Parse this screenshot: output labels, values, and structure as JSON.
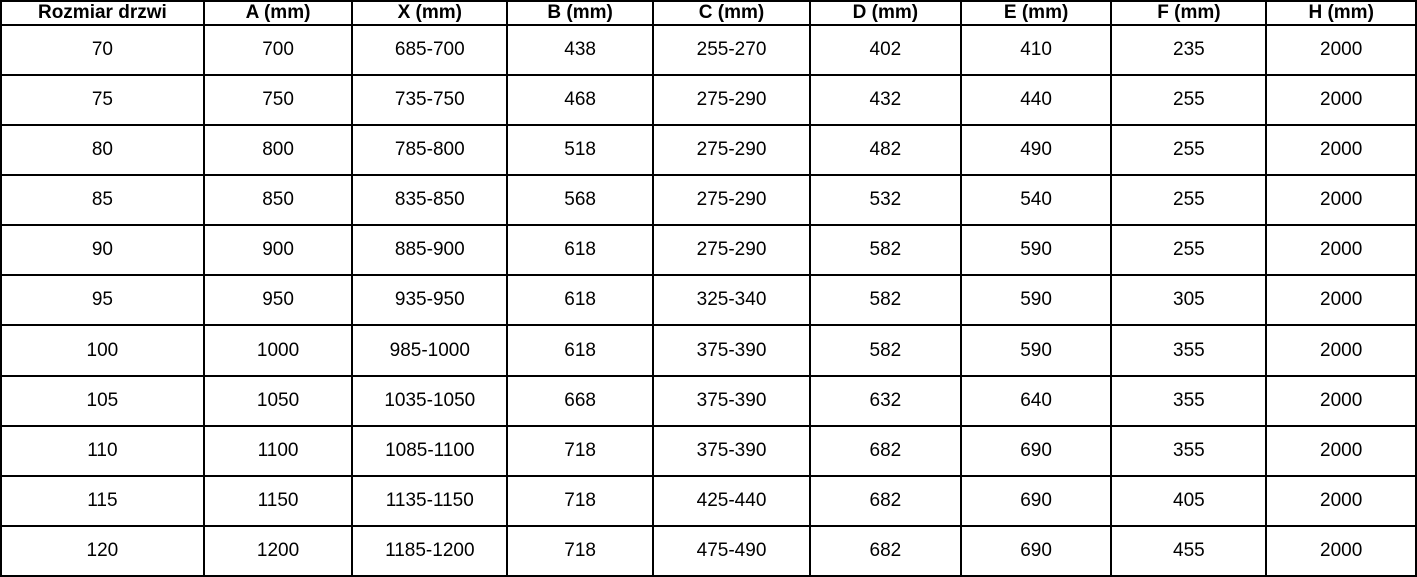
{
  "colors": {
    "border": "#000000",
    "text": "#000000",
    "background": "#ffffff"
  },
  "table": {
    "headers": [
      "Rozmiar drzwi",
      "A (mm)",
      "X (mm)",
      "B (mm)",
      "C (mm)",
      "D (mm)",
      "E (mm)",
      "F (mm)",
      "H (mm)"
    ],
    "rows": [
      [
        "70",
        "700",
        "685-700",
        "438",
        "255-270",
        "402",
        "410",
        "235",
        "2000"
      ],
      [
        "75",
        "750",
        "735-750",
        "468",
        "275-290",
        "432",
        "440",
        "255",
        "2000"
      ],
      [
        "80",
        "800",
        "785-800",
        "518",
        "275-290",
        "482",
        "490",
        "255",
        "2000"
      ],
      [
        "85",
        "850",
        "835-850",
        "568",
        "275-290",
        "532",
        "540",
        "255",
        "2000"
      ],
      [
        "90",
        "900",
        "885-900",
        "618",
        "275-290",
        "582",
        "590",
        "255",
        "2000"
      ],
      [
        "95",
        "950",
        "935-950",
        "618",
        "325-340",
        "582",
        "590",
        "305",
        "2000"
      ],
      [
        "100",
        "1000",
        "985-1000",
        "618",
        "375-390",
        "582",
        "590",
        "355",
        "2000"
      ],
      [
        "105",
        "1050",
        "1035-1050",
        "668",
        "375-390",
        "632",
        "640",
        "355",
        "2000"
      ],
      [
        "110",
        "1100",
        "1085-1100",
        "718",
        "375-390",
        "682",
        "690",
        "355",
        "2000"
      ],
      [
        "115",
        "1150",
        "1135-1150",
        "718",
        "425-440",
        "682",
        "690",
        "405",
        "2000"
      ],
      [
        "120",
        "1200",
        "1185-1200",
        "718",
        "475-490",
        "682",
        "690",
        "455",
        "2000"
      ]
    ]
  }
}
